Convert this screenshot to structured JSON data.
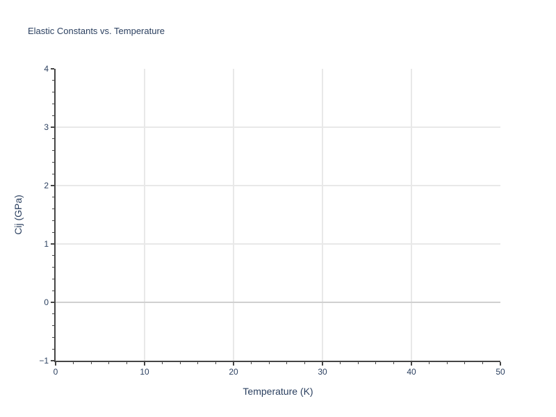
{
  "chart_data": {
    "type": "scatter",
    "title": "Elastic Constants vs. Temperature",
    "xlabel": "Temperature (K)",
    "ylabel": "Cij (GPa)",
    "xlim": [
      0,
      50
    ],
    "ylim": [
      -1,
      4
    ],
    "series": [],
    "grid": true,
    "legend": false,
    "x_ticks": {
      "values": [
        0,
        10,
        20,
        30,
        40,
        50
      ],
      "labels": [
        "0",
        "10",
        "20",
        "30",
        "40",
        "50"
      ],
      "minor_step": 2
    },
    "y_ticks": {
      "values": [
        -1,
        0,
        1,
        2,
        3,
        4
      ],
      "labels": [
        "−1",
        "0",
        "1",
        "2",
        "3",
        "4"
      ],
      "minor_step": 0.2
    },
    "x_gridlines": [
      10,
      20,
      30,
      40
    ],
    "y_gridlines": [
      1,
      2,
      3
    ],
    "zeroline_y": 0,
    "colors": {
      "text": "#2a3f5f",
      "axis": "#444444",
      "grid": "#e8e8e8",
      "zeroline": "#d0d0d0",
      "background": "#ffffff"
    }
  }
}
